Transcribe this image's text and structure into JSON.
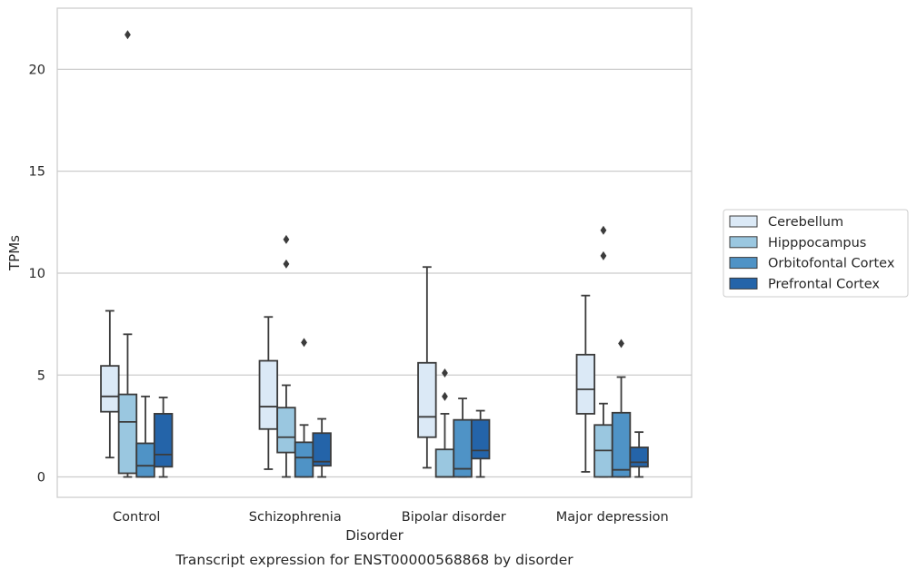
{
  "chart_data": {
    "type": "box",
    "caption": "Transcript expression for ENST00000568868 by disorder",
    "xlabel": "Disorder",
    "ylabel": "TPMs",
    "ylim": [
      -1,
      23
    ],
    "yticks": [
      0,
      5,
      10,
      15,
      20
    ],
    "grid": "horizontal",
    "legend_position": "right",
    "categories": [
      "Control",
      "Schizophrenia",
      "Bipolar disorder",
      "Major depression"
    ],
    "series": [
      {
        "name": "Cerebellum",
        "color": "#dbe9f6",
        "boxes": [
          {
            "whisker_low": 0.95,
            "q1": 3.2,
            "median": 3.95,
            "q3": 5.45,
            "whisker_high": 8.15,
            "outliers": []
          },
          {
            "whisker_low": 0.38,
            "q1": 2.35,
            "median": 3.45,
            "q3": 5.7,
            "whisker_high": 7.85,
            "outliers": []
          },
          {
            "whisker_low": 0.45,
            "q1": 1.95,
            "median": 2.95,
            "q3": 5.6,
            "whisker_high": 10.3,
            "outliers": []
          },
          {
            "whisker_low": 0.25,
            "q1": 3.1,
            "median": 4.3,
            "q3": 6.0,
            "whisker_high": 8.9,
            "outliers": []
          }
        ]
      },
      {
        "name": "Hipppocampus",
        "color": "#9ac7e0",
        "boxes": [
          {
            "whisker_low": 0.0,
            "q1": 0.18,
            "median": 2.7,
            "q3": 4.05,
            "whisker_high": 7.0,
            "outliers": [
              21.7
            ]
          },
          {
            "whisker_low": 0.0,
            "q1": 1.2,
            "median": 1.95,
            "q3": 3.4,
            "whisker_high": 4.5,
            "outliers": [
              11.65,
              10.45
            ]
          },
          {
            "whisker_low": 0.0,
            "q1": 0.0,
            "median": 0.0,
            "q3": 1.35,
            "whisker_high": 3.1,
            "outliers": [
              5.1,
              3.95
            ]
          },
          {
            "whisker_low": 0.0,
            "q1": 0.0,
            "median": 1.3,
            "q3": 2.55,
            "whisker_high": 3.6,
            "outliers": [
              10.85,
              12.1
            ]
          }
        ]
      },
      {
        "name": "Orbitofontal Cortex",
        "color": "#4f93c6",
        "boxes": [
          {
            "whisker_low": 0.0,
            "q1": 0.0,
            "median": 0.55,
            "q3": 1.65,
            "whisker_high": 3.95,
            "outliers": []
          },
          {
            "whisker_low": 0.0,
            "q1": 0.0,
            "median": 0.95,
            "q3": 1.7,
            "whisker_high": 2.55,
            "outliers": [
              6.6
            ]
          },
          {
            "whisker_low": 0.0,
            "q1": 0.0,
            "median": 0.4,
            "q3": 2.8,
            "whisker_high": 3.85,
            "outliers": []
          },
          {
            "whisker_low": 0.0,
            "q1": 0.0,
            "median": 0.35,
            "q3": 3.15,
            "whisker_high": 4.9,
            "outliers": [
              6.55
            ]
          }
        ]
      },
      {
        "name": "Prefrontal Cortex",
        "color": "#2464a9",
        "boxes": [
          {
            "whisker_low": 0.0,
            "q1": 0.5,
            "median": 1.1,
            "q3": 3.1,
            "whisker_high": 3.9,
            "outliers": []
          },
          {
            "whisker_low": 0.0,
            "q1": 0.55,
            "median": 0.75,
            "q3": 2.15,
            "whisker_high": 2.85,
            "outliers": []
          },
          {
            "whisker_low": 0.0,
            "q1": 0.9,
            "median": 1.3,
            "q3": 2.8,
            "whisker_high": 3.25,
            "outliers": []
          },
          {
            "whisker_low": 0.0,
            "q1": 0.5,
            "median": 0.72,
            "q3": 1.45,
            "whisker_high": 2.2,
            "outliers": []
          }
        ]
      }
    ]
  }
}
